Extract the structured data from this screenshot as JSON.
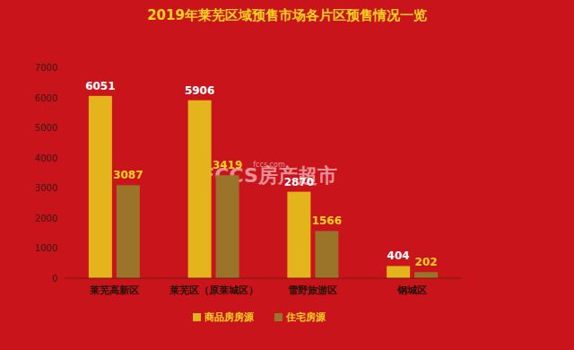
{
  "chart_data": {
    "type": "bar",
    "title": "2019年莱芜区域预售市场各片区预售情况一览",
    "categories": [
      "莱芜高新区",
      "莱芜区（原莱城区）",
      "雪野旅游区",
      "钢城区"
    ],
    "series": [
      {
        "name": "商品房房源",
        "color": "#e3b41c",
        "values": [
          6051,
          5906,
          2870,
          404
        ]
      },
      {
        "name": "住宅房源",
        "color": "#9a7428",
        "values": [
          3087,
          3419,
          1566,
          202
        ]
      }
    ],
    "ylim": [
      0,
      7000
    ],
    "yticks": [
      0,
      1000,
      2000,
      3000,
      4000,
      5000,
      6000,
      7000
    ],
    "grid": false,
    "legend": "bottom",
    "data_labels": true,
    "annotations": [
      "FCCS房产超市",
      "fccs.com"
    ]
  }
}
